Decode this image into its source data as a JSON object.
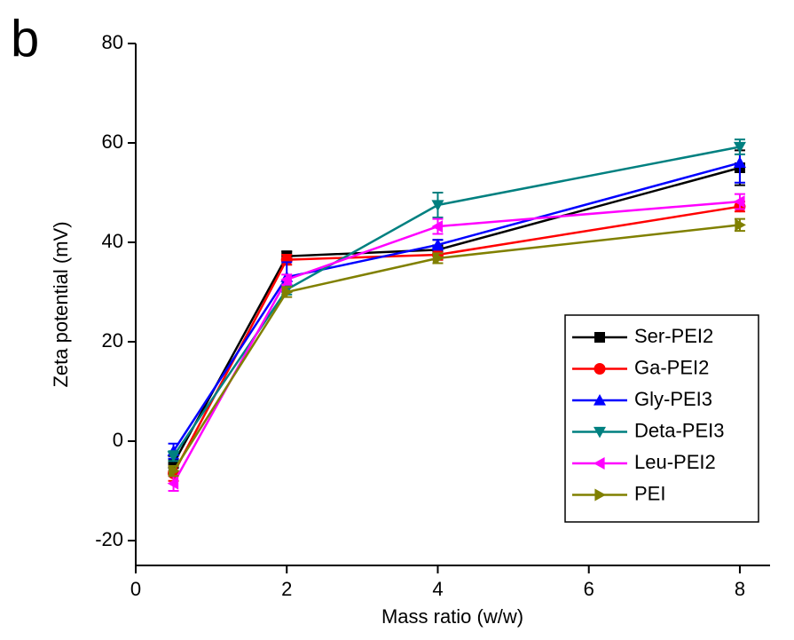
{
  "chart_data": {
    "type": "line",
    "panel_label": "b",
    "xlabel": "Mass ratio (w/w)",
    "ylabel": "Zeta potential (mV)",
    "x": [
      0.5,
      2,
      4,
      8
    ],
    "series": [
      {
        "name": "Ser-PEI2",
        "color": "#000000",
        "marker": "square",
        "values": [
          -4.5,
          37.2,
          38.5,
          55
        ],
        "errors": [
          1.5,
          1,
          2,
          3.5
        ]
      },
      {
        "name": "Ga-PEI2",
        "color": "#ff0000",
        "marker": "circle",
        "values": [
          -6.5,
          36.5,
          37.5,
          47.2
        ],
        "errors": [
          1.5,
          1,
          1,
          1
        ]
      },
      {
        "name": "Gly-PEI3",
        "color": "#0000ff",
        "marker": "triangle-up",
        "values": [
          -2,
          33,
          39.5,
          56
        ],
        "errors": [
          1.5,
          3,
          1,
          4
        ]
      },
      {
        "name": "Deta-PEI3",
        "color": "#008080",
        "marker": "triangle-down",
        "values": [
          -3,
          30.5,
          47.5,
          59.2
        ],
        "errors": [
          1,
          1,
          2.5,
          1.5
        ]
      },
      {
        "name": "Leu-PEI2",
        "color": "#ff00ff",
        "marker": "triangle-left",
        "values": [
          -8.5,
          32.5,
          43.2,
          48.2
        ],
        "errors": [
          1.5,
          1,
          1.5,
          1.5
        ]
      },
      {
        "name": "PEI",
        "color": "#808000",
        "marker": "triangle-right",
        "values": [
          -6,
          30,
          36.8,
          43.5
        ],
        "errors": [
          1,
          1,
          1,
          1.2
        ]
      }
    ],
    "xlim": [
      0,
      8.4
    ],
    "ylim": [
      -25,
      80
    ],
    "xticks": [
      0,
      2,
      4,
      6,
      8
    ],
    "yticks": [
      -20,
      0,
      20,
      40,
      60,
      80
    ],
    "legend": "lower right"
  }
}
